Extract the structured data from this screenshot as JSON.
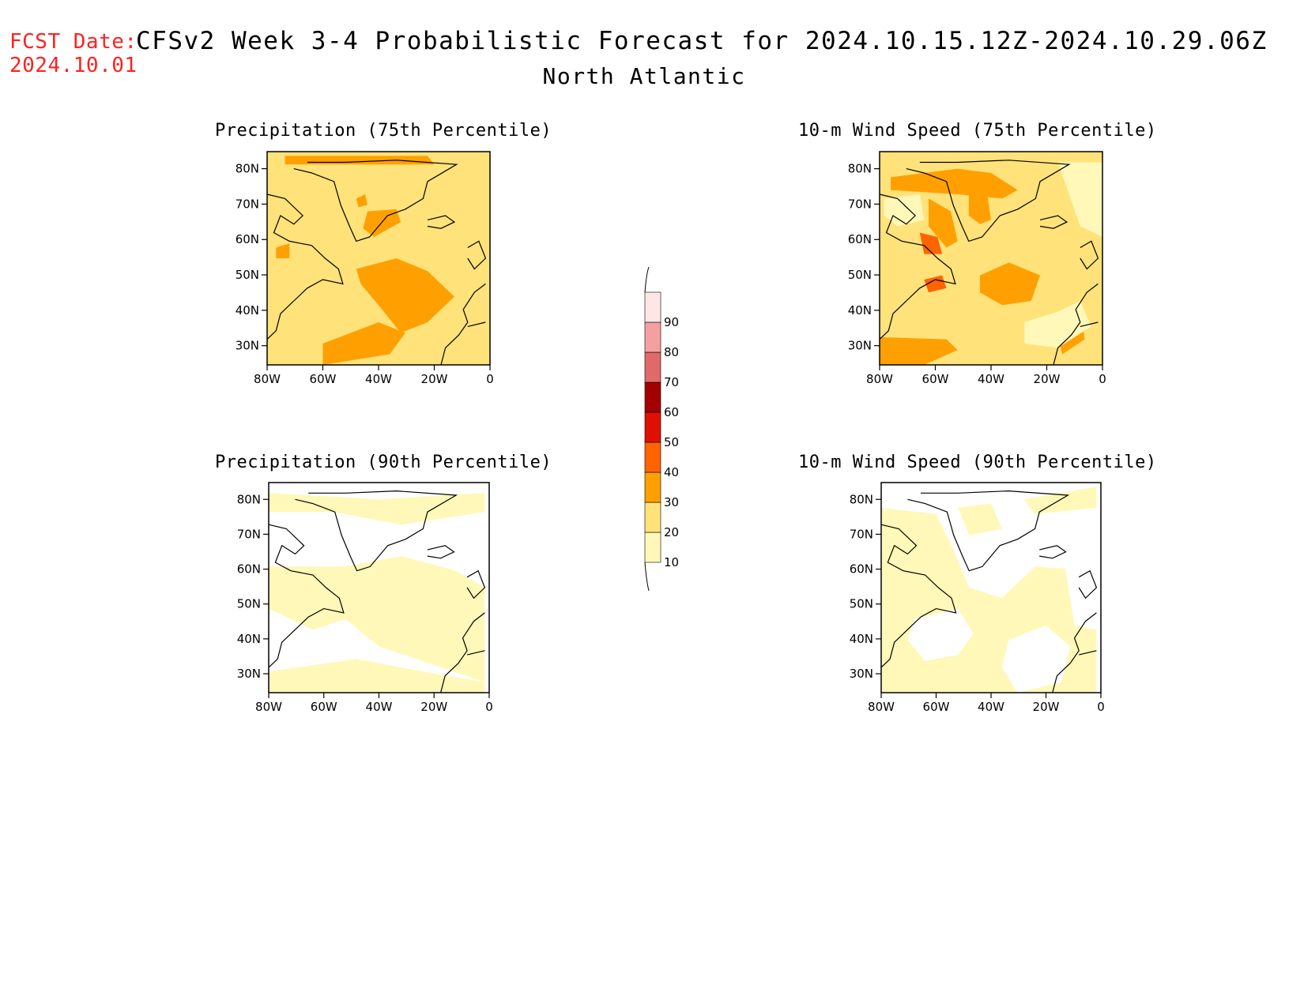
{
  "header": {
    "fcst_label": "FCST Date:",
    "fcst_date": "2024.10.01",
    "title": "CFSv2 Week 3-4 Probabilistic Forecast for 2024.10.15.12Z-2024.10.29.06Z",
    "region": "North Atlantic"
  },
  "axes": {
    "lat_labels": [
      "80N",
      "70N",
      "60N",
      "50N",
      "40N",
      "30N"
    ],
    "lon_labels": [
      "80W",
      "60W",
      "40W",
      "20W",
      "0"
    ]
  },
  "panels": [
    {
      "id": "precip75",
      "title": "Precipitation (75th Percentile)",
      "background_class": 2
    },
    {
      "id": "wind75",
      "title": "10-m Wind Speed (75th Percentile)",
      "background_class": 2
    },
    {
      "id": "precip90",
      "title": "Precipitation (90th Percentile)",
      "background_class": 0
    },
    {
      "id": "wind90",
      "title": "10-m Wind Speed (90th Percentile)",
      "background_class": 0
    }
  ],
  "colorbar": {
    "labels": [
      "10",
      "20",
      "30",
      "40",
      "50",
      "60",
      "70",
      "80",
      "90"
    ],
    "colors": [
      "#ffffff",
      "#fff8b8",
      "#ffe27a",
      "#ffa000",
      "#ff6400",
      "#e01000",
      "#a50000",
      "#e06a6a",
      "#f4a0a0",
      "#ffe6e6"
    ]
  }
}
